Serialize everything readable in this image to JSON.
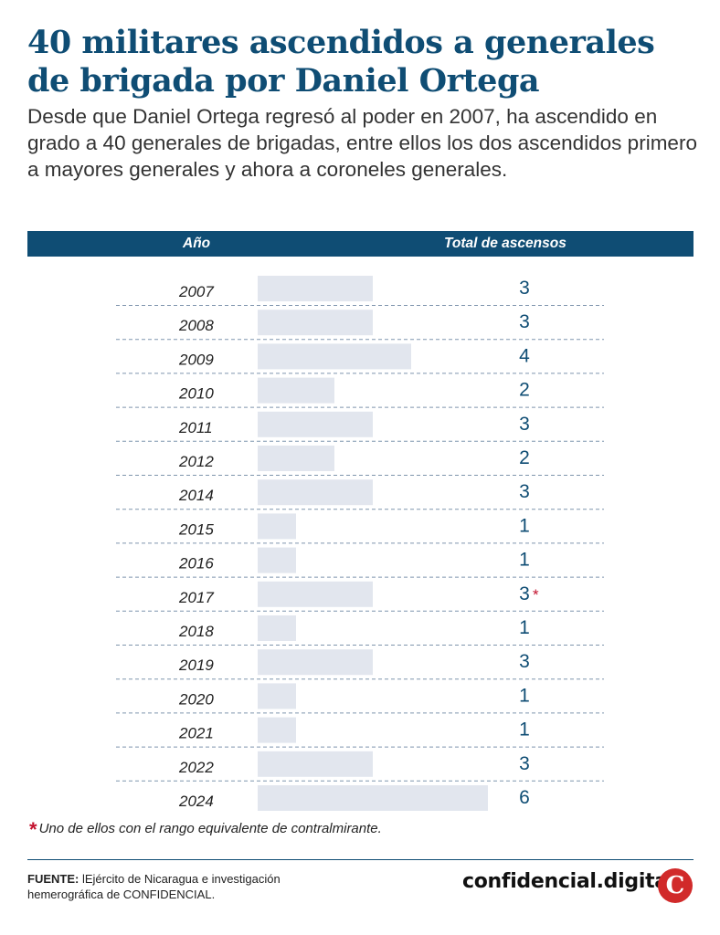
{
  "title": "40 militares ascendidos a generales de brigada por Daniel Ortega",
  "subtitle": "Desde que Daniel Ortega regresó al poder en 2007, ha ascendido en grado a 40 generales de brigadas, entre ellos los dos ascendidos primero a mayores generales y ahora a coroneles generales.",
  "colors": {
    "brand": "#0f4d74",
    "bar": "#e2e6ee",
    "accent_red": "#c3122e",
    "logo_red": "#d12a2a"
  },
  "chart_data": {
    "type": "bar",
    "orientation": "horizontal",
    "columns": {
      "year": "Año",
      "total": "Total de ascensos"
    },
    "categories": [
      "2007",
      "2008",
      "2009",
      "2010",
      "2011",
      "2012",
      "2014",
      "2015",
      "2016",
      "2017",
      "2018",
      "2019",
      "2020",
      "2021",
      "2022",
      "2024"
    ],
    "values": [
      3,
      3,
      4,
      2,
      3,
      2,
      3,
      1,
      1,
      3,
      1,
      3,
      1,
      1,
      3,
      6
    ],
    "value_labels": [
      "3",
      "3",
      "4",
      "2",
      "3",
      "2",
      "3",
      "1",
      "1",
      "3",
      "1",
      "3",
      "1",
      "1",
      "3",
      "6"
    ],
    "marked_index": 9,
    "marker": "*",
    "xlim": [
      0,
      6
    ]
  },
  "footnote": {
    "marker": "*",
    "text": "Uno de ellos con el rango equivalente de contralmirante."
  },
  "source": {
    "label": "FUENTE:",
    "text_1": " lEjército de Nicaragua e investigación hemerográfica de ",
    "org": "CONFIDENCIAL",
    "text_2": "."
  },
  "brand": {
    "name": "confidencial.digital",
    "logo_letter": "C"
  }
}
